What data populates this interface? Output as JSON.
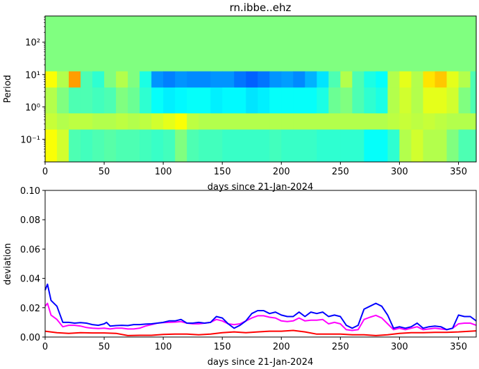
{
  "chart_data": [
    {
      "type": "heatmap",
      "title": "rn.ibbe..ehz",
      "xlabel": "days since 21-Jan-2024",
      "ylabel": "Period",
      "xlim": [
        0,
        365
      ],
      "ylim_log10": [
        -1.7,
        2.81
      ],
      "yscale": "log",
      "xticks": [
        0,
        50,
        100,
        150,
        200,
        250,
        300,
        350
      ],
      "yticks": [
        {
          "log10": 2,
          "label": "10²"
        },
        {
          "log10": 1,
          "label": "10¹"
        },
        {
          "log10": 0,
          "label": "10⁰"
        },
        {
          "log10": -1,
          "label": "10⁻¹"
        }
      ],
      "colormap": "jet",
      "bin_days": 10,
      "bands": [
        {
          "log10_range": [
            1.1,
            2.81
          ],
          "values": [
            0.5,
            0.5,
            0.5,
            0.5,
            0.5,
            0.5,
            0.5,
            0.5,
            0.5,
            0.5,
            0.5,
            0.5,
            0.5,
            0.5,
            0.5,
            0.5,
            0.5,
            0.5,
            0.5,
            0.5,
            0.5,
            0.5,
            0.5,
            0.5,
            0.5,
            0.5,
            0.5,
            0.5,
            0.5,
            0.5,
            0.5,
            0.5,
            0.5,
            0.5,
            0.5,
            0.5,
            0.5
          ]
        },
        {
          "log10_range": [
            0.6,
            1.1
          ],
          "values": [
            0.62,
            0.55,
            0.72,
            0.45,
            0.42,
            0.5,
            0.55,
            0.5,
            0.4,
            0.27,
            0.25,
            0.27,
            0.26,
            0.26,
            0.27,
            0.27,
            0.24,
            0.22,
            0.24,
            0.27,
            0.28,
            0.26,
            0.3,
            0.35,
            0.45,
            0.55,
            0.45,
            0.4,
            0.38,
            0.55,
            0.6,
            0.55,
            0.65,
            0.68,
            0.6,
            0.55,
            0.45
          ]
        },
        {
          "log10_range": [
            -0.2,
            0.6
          ],
          "values": [
            0.55,
            0.5,
            0.45,
            0.45,
            0.44,
            0.45,
            0.5,
            0.48,
            0.42,
            0.38,
            0.36,
            0.37,
            0.38,
            0.38,
            0.36,
            0.37,
            0.37,
            0.35,
            0.36,
            0.38,
            0.38,
            0.38,
            0.38,
            0.4,
            0.48,
            0.5,
            0.45,
            0.42,
            0.4,
            0.55,
            0.58,
            0.55,
            0.6,
            0.6,
            0.58,
            0.5,
            0.45
          ]
        },
        {
          "log10_range": [
            -0.7,
            -0.2
          ],
          "values": [
            0.57,
            0.55,
            0.56,
            0.56,
            0.55,
            0.55,
            0.56,
            0.55,
            0.56,
            0.58,
            0.6,
            0.62,
            0.56,
            0.55,
            0.55,
            0.55,
            0.55,
            0.55,
            0.55,
            0.55,
            0.55,
            0.55,
            0.55,
            0.55,
            0.55,
            0.55,
            0.55,
            0.55,
            0.55,
            0.56,
            0.57,
            0.56,
            0.57,
            0.56,
            0.55,
            0.55,
            0.55
          ]
        },
        {
          "log10_range": [
            -1.7,
            -0.7
          ],
          "values": [
            0.62,
            0.58,
            0.45,
            0.44,
            0.45,
            0.46,
            0.45,
            0.45,
            0.44,
            0.43,
            0.44,
            0.5,
            0.45,
            0.44,
            0.44,
            0.43,
            0.43,
            0.43,
            0.43,
            0.44,
            0.43,
            0.43,
            0.43,
            0.42,
            0.42,
            0.42,
            0.42,
            0.38,
            0.38,
            0.42,
            0.55,
            0.58,
            0.55,
            0.55,
            0.5,
            0.45,
            0.45
          ]
        }
      ]
    },
    {
      "type": "line",
      "xlabel": "days since 21-Jan-2024",
      "ylabel": "deviation",
      "xlim": [
        0,
        365
      ],
      "ylim": [
        0,
        0.1
      ],
      "xticks": [
        0,
        50,
        100,
        150,
        200,
        250,
        300,
        350
      ],
      "yticks": [
        "0.00",
        "0.02",
        "0.04",
        "0.06",
        "0.08",
        "0.10"
      ],
      "series": [
        {
          "name": "red",
          "color": "#ff0000",
          "points": [
            [
              0,
              0.004
            ],
            [
              10,
              0.003
            ],
            [
              20,
              0.0025
            ],
            [
              30,
              0.003
            ],
            [
              40,
              0.0028
            ],
            [
              50,
              0.0028
            ],
            [
              60,
              0.0025
            ],
            [
              70,
              0.001
            ],
            [
              80,
              0.0012
            ],
            [
              90,
              0.0012
            ],
            [
              100,
              0.0018
            ],
            [
              110,
              0.002
            ],
            [
              120,
              0.002
            ],
            [
              130,
              0.0015
            ],
            [
              140,
              0.002
            ],
            [
              150,
              0.003
            ],
            [
              160,
              0.0035
            ],
            [
              170,
              0.003
            ],
            [
              180,
              0.0035
            ],
            [
              190,
              0.004
            ],
            [
              200,
              0.004
            ],
            [
              210,
              0.0045
            ],
            [
              220,
              0.0035
            ],
            [
              230,
              0.002
            ],
            [
              240,
              0.002
            ],
            [
              250,
              0.002
            ],
            [
              260,
              0.0015
            ],
            [
              270,
              0.0015
            ],
            [
              280,
              0.001
            ],
            [
              290,
              0.0015
            ],
            [
              300,
              0.0025
            ],
            [
              310,
              0.003
            ],
            [
              320,
              0.003
            ],
            [
              330,
              0.0032
            ],
            [
              340,
              0.0032
            ],
            [
              350,
              0.0035
            ],
            [
              365,
              0.0042
            ]
          ]
        },
        {
          "name": "magenta",
          "color": "#ff00ff",
          "points": [
            [
              0,
              0.021
            ],
            [
              2,
              0.023
            ],
            [
              5,
              0.015
            ],
            [
              10,
              0.012
            ],
            [
              15,
              0.007
            ],
            [
              20,
              0.008
            ],
            [
              25,
              0.008
            ],
            [
              30,
              0.0075
            ],
            [
              35,
              0.0065
            ],
            [
              40,
              0.006
            ],
            [
              45,
              0.0058
            ],
            [
              50,
              0.006
            ],
            [
              55,
              0.0055
            ],
            [
              60,
              0.006
            ],
            [
              65,
              0.006
            ],
            [
              70,
              0.0055
            ],
            [
              75,
              0.0055
            ],
            [
              80,
              0.006
            ],
            [
              85,
              0.0075
            ],
            [
              90,
              0.0085
            ],
            [
              95,
              0.0095
            ],
            [
              100,
              0.0098
            ],
            [
              105,
              0.01
            ],
            [
              110,
              0.0102
            ],
            [
              115,
              0.0105
            ],
            [
              120,
              0.0095
            ],
            [
              125,
              0.009
            ],
            [
              130,
              0.009
            ],
            [
              135,
              0.0095
            ],
            [
              140,
              0.01
            ],
            [
              145,
              0.012
            ],
            [
              150,
              0.011
            ],
            [
              155,
              0.009
            ],
            [
              160,
              0.0085
            ],
            [
              165,
              0.009
            ],
            [
              170,
              0.011
            ],
            [
              175,
              0.013
            ],
            [
              180,
              0.0145
            ],
            [
              185,
              0.0145
            ],
            [
              190,
              0.0135
            ],
            [
              195,
              0.013
            ],
            [
              200,
              0.011
            ],
            [
              205,
              0.0105
            ],
            [
              210,
              0.011
            ],
            [
              215,
              0.013
            ],
            [
              220,
              0.011
            ],
            [
              225,
              0.0115
            ],
            [
              230,
              0.0115
            ],
            [
              235,
              0.012
            ],
            [
              240,
              0.009
            ],
            [
              245,
              0.01
            ],
            [
              250,
              0.009
            ],
            [
              255,
              0.005
            ],
            [
              260,
              0.0045
            ],
            [
              265,
              0.005
            ],
            [
              270,
              0.012
            ],
            [
              275,
              0.0135
            ],
            [
              280,
              0.0148
            ],
            [
              285,
              0.013
            ],
            [
              290,
              0.009
            ],
            [
              295,
              0.005
            ],
            [
              300,
              0.006
            ],
            [
              305,
              0.005
            ],
            [
              310,
              0.006
            ],
            [
              315,
              0.007
            ],
            [
              320,
              0.005
            ],
            [
              325,
              0.0055
            ],
            [
              330,
              0.006
            ],
            [
              335,
              0.0055
            ],
            [
              340,
              0.005
            ],
            [
              345,
              0.006
            ],
            [
              350,
              0.009
            ],
            [
              355,
              0.0095
            ],
            [
              360,
              0.0095
            ],
            [
              365,
              0.008
            ]
          ]
        },
        {
          "name": "blue",
          "color": "#0000ff",
          "points": [
            [
              0,
              0.032
            ],
            [
              2,
              0.036
            ],
            [
              5,
              0.025
            ],
            [
              10,
              0.021
            ],
            [
              15,
              0.01
            ],
            [
              20,
              0.01
            ],
            [
              25,
              0.0095
            ],
            [
              30,
              0.0098
            ],
            [
              35,
              0.0095
            ],
            [
              40,
              0.0085
            ],
            [
              45,
              0.008
            ],
            [
              50,
              0.009
            ],
            [
              52,
              0.01
            ],
            [
              55,
              0.0075
            ],
            [
              60,
              0.0078
            ],
            [
              65,
              0.008
            ],
            [
              70,
              0.0078
            ],
            [
              75,
              0.0085
            ],
            [
              80,
              0.0085
            ],
            [
              85,
              0.0088
            ],
            [
              90,
              0.009
            ],
            [
              95,
              0.0095
            ],
            [
              100,
              0.01
            ],
            [
              105,
              0.011
            ],
            [
              110,
              0.011
            ],
            [
              115,
              0.012
            ],
            [
              120,
              0.0095
            ],
            [
              125,
              0.0095
            ],
            [
              130,
              0.01
            ],
            [
              135,
              0.0095
            ],
            [
              140,
              0.01
            ],
            [
              145,
              0.014
            ],
            [
              150,
              0.013
            ],
            [
              155,
              0.009
            ],
            [
              160,
              0.006
            ],
            [
              165,
              0.008
            ],
            [
              170,
              0.011
            ],
            [
              175,
              0.016
            ],
            [
              180,
              0.018
            ],
            [
              185,
              0.018
            ],
            [
              190,
              0.016
            ],
            [
              195,
              0.017
            ],
            [
              200,
              0.015
            ],
            [
              205,
              0.014
            ],
            [
              210,
              0.014
            ],
            [
              215,
              0.017
            ],
            [
              220,
              0.014
            ],
            [
              225,
              0.017
            ],
            [
              230,
              0.016
            ],
            [
              235,
              0.017
            ],
            [
              240,
              0.014
            ],
            [
              245,
              0.015
            ],
            [
              250,
              0.014
            ],
            [
              255,
              0.008
            ],
            [
              260,
              0.006
            ],
            [
              265,
              0.008
            ],
            [
              270,
              0.019
            ],
            [
              275,
              0.021
            ],
            [
              280,
              0.023
            ],
            [
              285,
              0.021
            ],
            [
              290,
              0.015
            ],
            [
              295,
              0.006
            ],
            [
              300,
              0.007
            ],
            [
              305,
              0.006
            ],
            [
              310,
              0.007
            ],
            [
              315,
              0.0095
            ],
            [
              320,
              0.006
            ],
            [
              325,
              0.007
            ],
            [
              330,
              0.0075
            ],
            [
              335,
              0.007
            ],
            [
              340,
              0.005
            ],
            [
              345,
              0.006
            ],
            [
              350,
              0.015
            ],
            [
              355,
              0.014
            ],
            [
              360,
              0.014
            ],
            [
              365,
              0.011
            ]
          ]
        }
      ]
    }
  ]
}
